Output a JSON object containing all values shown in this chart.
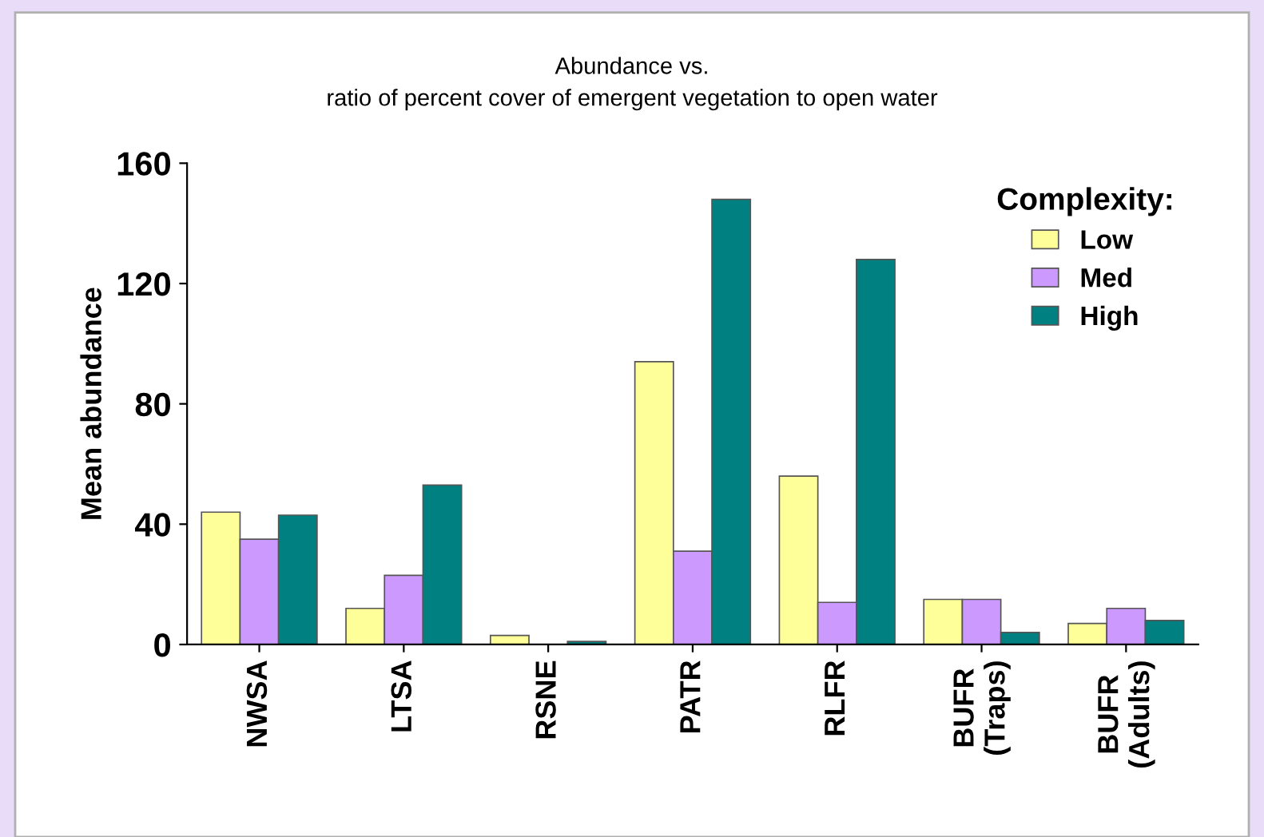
{
  "chart_data": {
    "type": "bar",
    "title": "Abundance vs.\nratio of percent cover of emergent vegetation to open water",
    "ylabel": "Mean abundance",
    "categories": [
      "NWSA",
      "LTSA",
      "RSNE",
      "PATR",
      "RLFR",
      "BUFR\n(Traps)",
      "BUFR\n(Adults)"
    ],
    "series": [
      {
        "name": "Low",
        "color": "#ffff99",
        "values": [
          44,
          12,
          3,
          94,
          56,
          15,
          7
        ]
      },
      {
        "name": "Med",
        "color": "#cc99ff",
        "values": [
          35,
          23,
          null,
          31,
          14,
          15,
          12
        ]
      },
      {
        "name": "High",
        "color": "#008080",
        "values": [
          43,
          53,
          1,
          148,
          128,
          4,
          8
        ]
      }
    ],
    "ylim": [
      0,
      160
    ],
    "yticks": [
      0,
      40,
      80,
      120,
      160
    ],
    "legend": "top right",
    "legend_title": "Complexity:",
    "grid": false
  }
}
